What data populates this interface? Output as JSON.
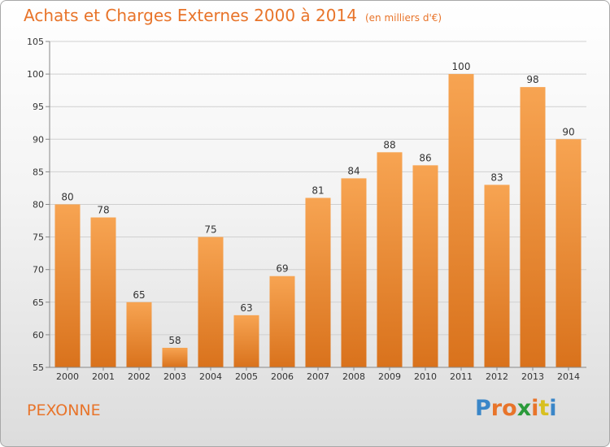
{
  "header": {
    "title": "Achats et Charges Externes 2000 à 2014",
    "subtitle": "(en milliers d'€)"
  },
  "footer": {
    "commune": "PEXONNE",
    "logo": {
      "text": "Proxiti",
      "letter_colors": [
        "#3a86c8",
        "#e8742a",
        "#e8742a",
        "#2a9a3a",
        "#e8742a",
        "#d8c020",
        "#3a86c8"
      ]
    }
  },
  "colors": {
    "bar_light": "#f7a452",
    "bar_dark": "#d9721c",
    "accent": "#e8742a",
    "axis": "#888888",
    "grid": "#cfcfcf"
  },
  "chart_data": {
    "type": "bar",
    "title": "Achats et Charges Externes 2000 à 2014",
    "subtitle": "(en milliers d'€)",
    "categories": [
      "2000",
      "2001",
      "2002",
      "2003",
      "2004",
      "2005",
      "2006",
      "2007",
      "2008",
      "2009",
      "2010",
      "2011",
      "2012",
      "2013",
      "2014"
    ],
    "values": [
      80,
      78,
      65,
      58,
      75,
      63,
      69,
      81,
      84,
      88,
      86,
      100,
      83,
      98,
      90
    ],
    "ylim": [
      55,
      105
    ],
    "yticks": [
      55,
      60,
      65,
      70,
      75,
      80,
      85,
      90,
      95,
      100,
      105
    ],
    "grid": true,
    "data_labels": true
  }
}
